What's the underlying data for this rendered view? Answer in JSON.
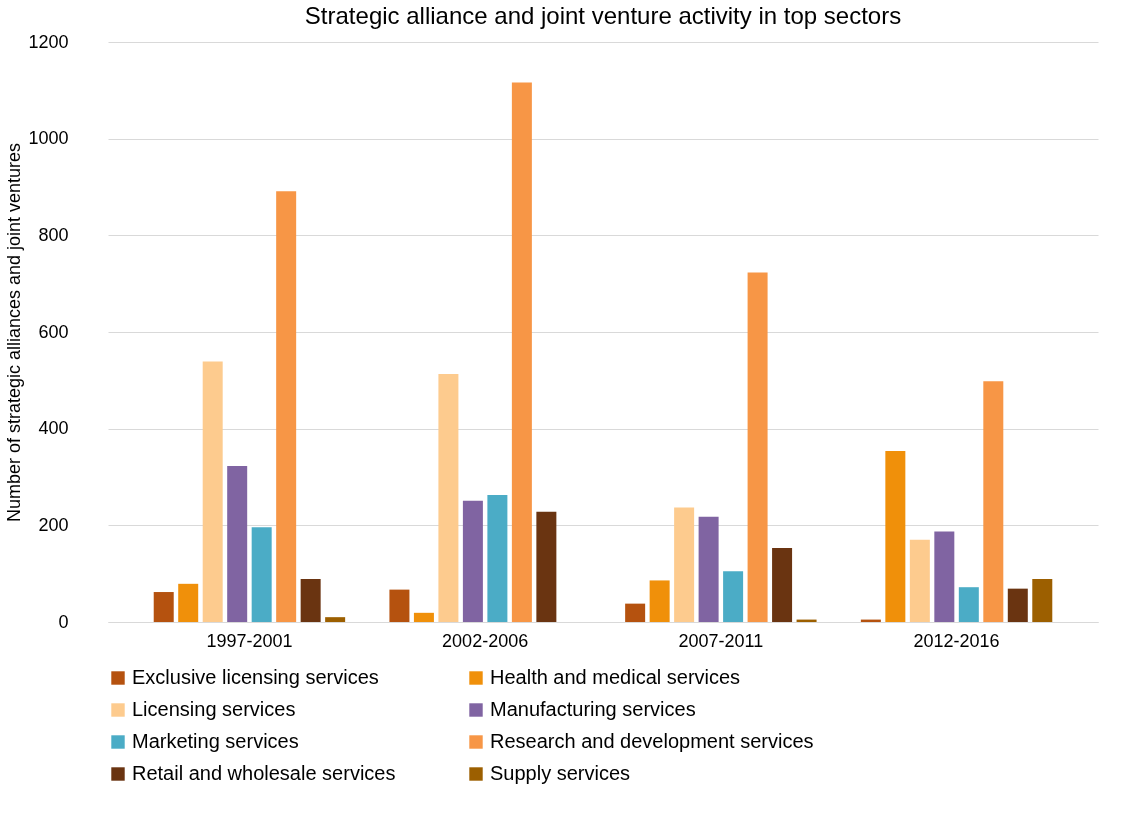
{
  "chart_data": {
    "type": "bar",
    "title": "Strategic alliance and joint venture activity in top sectors",
    "ylabel": "Number of strategic alliances and joint ventures",
    "categories": [
      "1997-2001",
      "2002-2006",
      "2007-2011",
      "2012-2016"
    ],
    "series": [
      {
        "name": "Exclusive licensing services",
        "color": "#b5520f",
        "values": [
          62,
          67,
          38,
          5
        ]
      },
      {
        "name": "Health and medical services",
        "color": "#f0900a",
        "values": [
          79,
          19,
          86,
          354
        ]
      },
      {
        "name": "Licensing services",
        "color": "#fdcb8e",
        "values": [
          539,
          513,
          237,
          170
        ]
      },
      {
        "name": "Manufacturing services",
        "color": "#8064a2",
        "values": [
          323,
          251,
          218,
          187
        ]
      },
      {
        "name": "Marketing services",
        "color": "#4bacc6",
        "values": [
          196,
          263,
          105,
          72
        ]
      },
      {
        "name": "Research and development services",
        "color": "#f79646",
        "values": [
          891,
          1116,
          723,
          498
        ]
      },
      {
        "name": "Retail and wholesale services",
        "color": "#6a3411",
        "values": [
          89,
          228,
          153,
          69
        ]
      },
      {
        "name": "Supply services",
        "color": "#9c5f00",
        "values": [
          10,
          0,
          5,
          89
        ]
      }
    ],
    "ylim": [
      0,
      1200
    ],
    "yticks": [
      0,
      200,
      400,
      600,
      800,
      1000,
      1200
    ],
    "grid": "y",
    "legend": "bottom"
  }
}
